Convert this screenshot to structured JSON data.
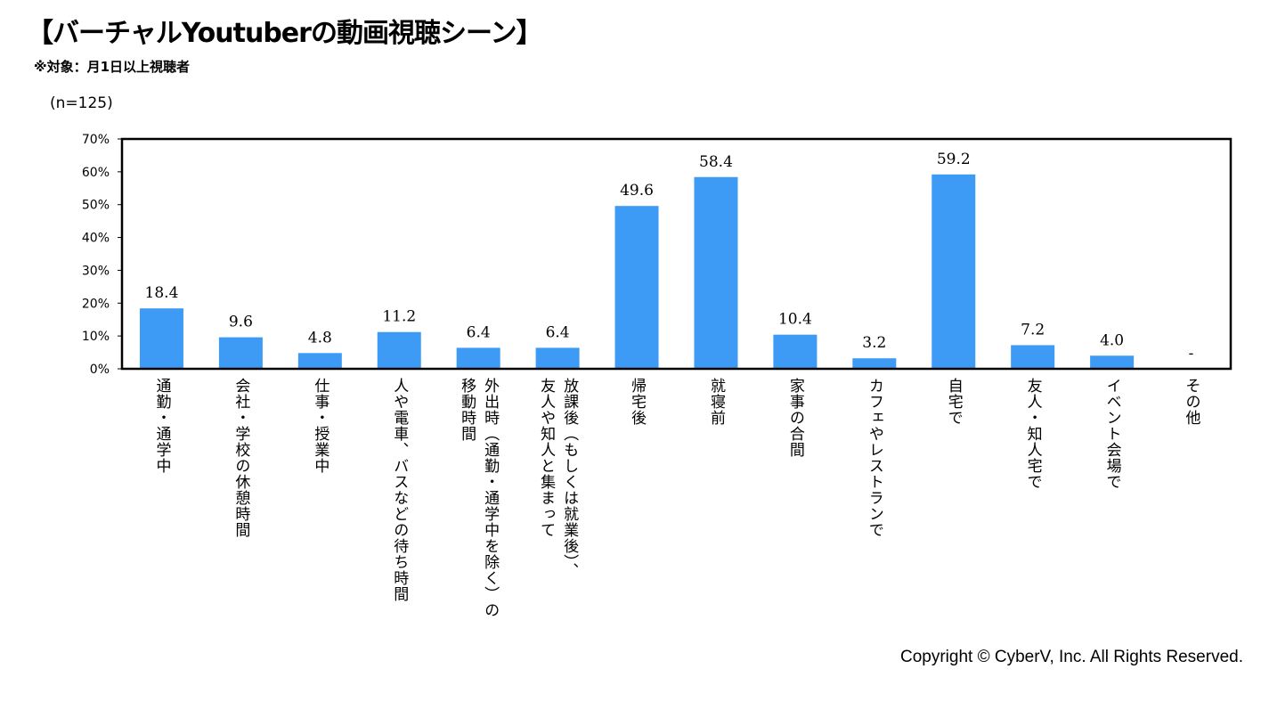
{
  "title": "【バーチャルYoutuberの動画視聴シーン】",
  "subtitle": "※対象：月1日以上視聴者",
  "sample_size": "(n=125)",
  "copyright": "Copyright © CyberV, Inc. All Rights Reserved.",
  "colors": {
    "bar": "#3d9bf5",
    "axis": "#000000"
  },
  "chart_data": {
    "type": "bar",
    "title": "【バーチャルYoutuberの動画視聴シーン】",
    "ylim": [
      0,
      70
    ],
    "yticks": [
      "0%",
      "10%",
      "20%",
      "30%",
      "40%",
      "50%",
      "60%",
      "70%"
    ],
    "grid": false,
    "categories": [
      "通勤・通学中",
      "会社・学校の休憩時間",
      "仕事・授業中",
      "人や電車、バスなどの待ち時間",
      "外出時（通勤・通学中を除く）の\n移動時間",
      "放課後（もしくは就業後）、\n友人や知人と集まって",
      "帰宅後",
      "就寝前",
      "家事の合間",
      "カフェやレストランで",
      "自宅で",
      "友人・知人宅で",
      "イベント会場で",
      "その他"
    ],
    "values": [
      18.4,
      9.6,
      4.8,
      11.2,
      6.4,
      6.4,
      49.6,
      58.4,
      10.4,
      3.2,
      59.2,
      7.2,
      4.0,
      null
    ],
    "data_labels": [
      "18.4",
      "9.6",
      "4.8",
      "11.2",
      "6.4",
      "6.4",
      "49.6",
      "58.4",
      "10.4",
      "3.2",
      "59.2",
      "7.2",
      "4.0",
      "-"
    ]
  }
}
